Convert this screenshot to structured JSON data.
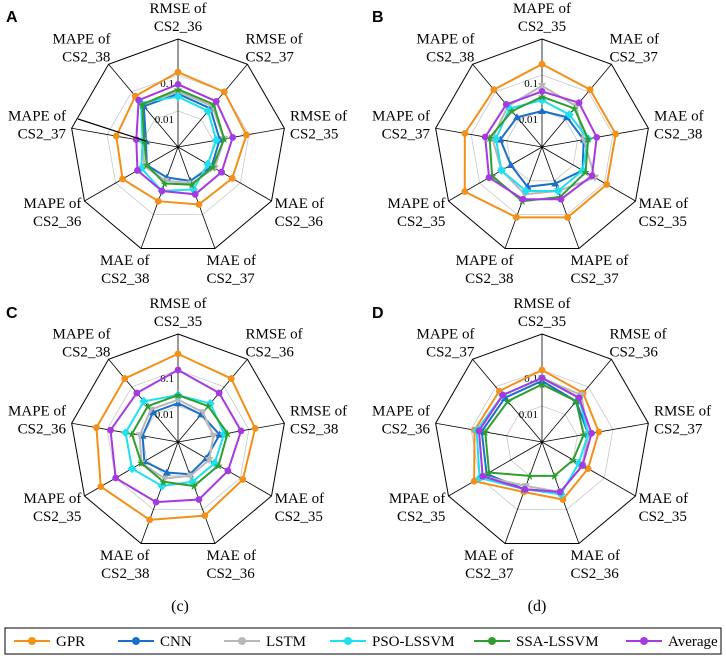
{
  "colors": {
    "GPR": "#f39019",
    "CNN": "#1c6fc9",
    "LSTM": "#b8b8b8",
    "PSO-LSSVM": "#20e0f0",
    "SSA-LSSVM": "#2f9e2f",
    "Average": "#a53ae0"
  },
  "legend": [
    "GPR",
    "CNN",
    "LSTM",
    "PSO-LSSVM",
    "SSA-LSSVM",
    "Average"
  ],
  "captions": [
    "(c)",
    "(d)"
  ],
  "chart_data": [
    {
      "type": "radar",
      "panel": "A",
      "scale": "log",
      "rmin": 0.001,
      "rmax": 1,
      "tick_labels": [
        "0.1",
        "0.01"
      ],
      "axes": [
        [
          "RMSE of",
          "CS2_36"
        ],
        [
          "RMSE of",
          "CS2_37"
        ],
        [
          "RMSE of",
          "CS2_35"
        ],
        [
          "MAE of",
          "CS2_36"
        ],
        [
          "MAE of",
          "CS2_37"
        ],
        [
          "MAE of",
          "CS2_38"
        ],
        [
          "MAPE of",
          "CS2_36"
        ],
        [
          "MAPE of",
          "CS2_37"
        ],
        [
          "MAPE of",
          "CS2_38"
        ]
      ],
      "series": [
        {
          "name": "GPR",
          "values": [
            0.12,
            0.1,
            0.085,
            0.055,
            0.05,
            0.04,
            0.06,
            0.055,
            0.07
          ]
        },
        {
          "name": "CNN",
          "values": [
            0.03,
            0.025,
            0.015,
            0.012,
            0.01,
            0.008,
            0.01,
            0.008,
            0.03
          ]
        },
        {
          "name": "LSTM",
          "values": [
            0.035,
            0.03,
            0.02,
            0.015,
            0.012,
            0.01,
            0.012,
            0.01,
            0.035
          ]
        },
        {
          "name": "PSO-LSSVM",
          "values": [
            0.025,
            0.02,
            0.012,
            0.009,
            0.018,
            0.02,
            0.015,
            0.01,
            0.04
          ]
        },
        {
          "name": "SSA-LSSVM",
          "values": [
            0.04,
            0.035,
            0.02,
            0.013,
            0.013,
            0.012,
            0.01,
            0.009,
            0.035
          ]
        },
        {
          "name": "Average",
          "values": [
            0.055,
            0.045,
            0.035,
            0.025,
            0.025,
            0.02,
            0.02,
            0.015,
            0.05
          ]
        }
      ]
    },
    {
      "type": "radar",
      "panel": "B",
      "scale": "log",
      "rmin": 0.001,
      "rmax": 1,
      "tick_labels": [
        "0.1",
        "0.01"
      ],
      "axes": [
        [
          "MAPE of",
          "CS2_35"
        ],
        [
          "MAE of",
          "CS2_37"
        ],
        [
          "MAE of",
          "CS2_38"
        ],
        [
          "MAE of",
          "CS2_35"
        ],
        [
          "MAPE of",
          "CS2_37"
        ],
        [
          "MAPE of",
          "CS2_38"
        ],
        [
          "MAPE of",
          "CS2_35"
        ],
        [
          "MAPE of",
          "CS2_37"
        ],
        [
          "MAPE of",
          "CS2_38"
        ]
      ],
      "series": [
        {
          "name": "GPR",
          "values": [
            0.2,
            0.12,
            0.12,
            0.12,
            0.12,
            0.12,
            0.3,
            0.15,
            0.12
          ]
        },
        {
          "name": "CNN",
          "values": [
            0.01,
            0.012,
            0.015,
            0.02,
            0.012,
            0.015,
            0.01,
            0.015,
            0.012
          ]
        },
        {
          "name": "LSTM",
          "values": [
            0.05,
            0.03,
            0.015,
            0.05,
            0.02,
            0.025,
            0.02,
            0.025,
            0.03
          ]
        },
        {
          "name": "PSO-LSSVM",
          "values": [
            0.02,
            0.015,
            0.02,
            0.02,
            0.02,
            0.02,
            0.02,
            0.02,
            0.025
          ]
        },
        {
          "name": "SSA-LSSVM",
          "values": [
            0.025,
            0.025,
            0.02,
            0.025,
            0.03,
            0.04,
            0.04,
            0.03,
            0.02
          ]
        },
        {
          "name": "Average",
          "values": [
            0.035,
            0.04,
            0.035,
            0.04,
            0.035,
            0.035,
            0.05,
            0.04,
            0.035
          ]
        }
      ]
    },
    {
      "type": "radar",
      "panel": "C",
      "scale": "log",
      "rmin": 0.001,
      "rmax": 1,
      "tick_labels": [
        "0.1",
        "0.01"
      ],
      "axes": [
        [
          "RMSE of",
          "CS2_35"
        ],
        [
          "RMSE of",
          "CS2_36"
        ],
        [
          "RMSE of",
          "CS2_38"
        ],
        [
          "MAE of",
          "CS2_35"
        ],
        [
          "MAE of",
          "CS2_36"
        ],
        [
          "MAE of",
          "CS2_38"
        ],
        [
          "MAPE of",
          "CS2_35"
        ],
        [
          "MAPE of",
          "CS2_36"
        ],
        [
          "MAPE of",
          "CS2_38"
        ]
      ],
      "series": [
        {
          "name": "GPR",
          "values": [
            0.28,
            0.2,
            0.15,
            0.12,
            0.15,
            0.2,
            0.3,
            0.2,
            0.2
          ]
        },
        {
          "name": "CNN",
          "values": [
            0.012,
            0.01,
            0.015,
            0.008,
            0.009,
            0.008,
            0.012,
            0.01,
            0.012
          ]
        },
        {
          "name": "LSTM",
          "values": [
            0.015,
            0.012,
            0.01,
            0.01,
            0.01,
            0.012,
            0.015,
            0.012,
            0.015
          ]
        },
        {
          "name": "PSO-LSSVM",
          "values": [
            0.02,
            0.025,
            0.02,
            0.015,
            0.015,
            0.02,
            0.03,
            0.03,
            0.03
          ]
        },
        {
          "name": "SSA-LSSVM",
          "values": [
            0.02,
            0.02,
            0.025,
            0.02,
            0.02,
            0.015,
            0.015,
            0.02,
            0.02
          ]
        },
        {
          "name": "Average",
          "values": [
            0.1,
            0.06,
            0.06,
            0.04,
            0.05,
            0.06,
            0.1,
            0.08,
            0.06
          ]
        }
      ]
    },
    {
      "type": "radar",
      "panel": "D",
      "scale": "log",
      "rmin": 0.001,
      "rmax": 1,
      "tick_labels": [
        "0.1",
        "0.01"
      ],
      "axes": [
        [
          "RMSE of",
          "CS2_35"
        ],
        [
          "RMSE of",
          "CS2_36"
        ],
        [
          "RMSE of",
          "CS2_37"
        ],
        [
          "MAE of",
          "CS2_35"
        ],
        [
          "MAE of",
          "CS2_36"
        ],
        [
          "MAE of",
          "CS2_37"
        ],
        [
          "MPAE of",
          "CS2_35"
        ],
        [
          "MAPE of",
          "CS2_36"
        ],
        [
          "MAPE of",
          "CS2_37"
        ]
      ],
      "series": [
        {
          "name": "GPR",
          "values": [
            0.1,
            0.06,
            0.04,
            0.03,
            0.05,
            0.03,
            0.15,
            0.08,
            0.07
          ]
        },
        {
          "name": "CNN",
          "values": [
            0.05,
            0.03,
            0.02,
            0.02,
            0.03,
            0.025,
            0.06,
            0.05,
            0.04
          ]
        },
        {
          "name": "LSTM",
          "values": [
            0.06,
            0.05,
            0.02,
            0.02,
            0.03,
            0.02,
            0.08,
            0.06,
            0.05
          ]
        },
        {
          "name": "PSO-LSSVM",
          "values": [
            0.06,
            0.04,
            0.02,
            0.015,
            0.035,
            0.025,
            0.1,
            0.07,
            0.05
          ]
        },
        {
          "name": "SSA-LSSVM",
          "values": [
            0.04,
            0.03,
            0.015,
            0.01,
            0.01,
            0.01,
            0.05,
            0.04,
            0.03
          ]
        },
        {
          "name": "Average",
          "values": [
            0.06,
            0.04,
            0.025,
            0.02,
            0.03,
            0.025,
            0.08,
            0.06,
            0.05
          ]
        }
      ]
    }
  ]
}
